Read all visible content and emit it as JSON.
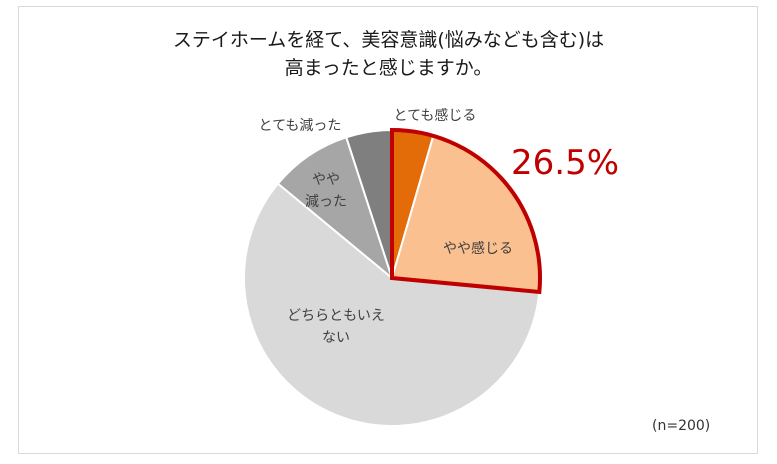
{
  "chart_data": {
    "type": "pie",
    "title": [
      "ステイホームを経て、美容意識(悩みなども含む)は",
      "高まったと感じますか。"
    ],
    "categories": [
      "とても感じる",
      "やや感じる",
      "どちらともいえない",
      "やや減った",
      "とても減った"
    ],
    "values": [
      4.5,
      22.0,
      59.5,
      9.0,
      5.0
    ],
    "colors": [
      "#e36c09",
      "#fac090",
      "#d9d9d9",
      "#a6a6a6",
      "#7f7f7f"
    ],
    "slice_labels": [
      [
        "とても感じる"
      ],
      [
        "やや感じる"
      ],
      [
        "どちらともいえ",
        "ない"
      ],
      [
        "やや",
        "減った"
      ],
      [
        "とても減った"
      ]
    ],
    "highlight": {
      "value": "26.5%",
      "outline_color": "#c00000"
    },
    "sample_size": "(n=200)"
  }
}
